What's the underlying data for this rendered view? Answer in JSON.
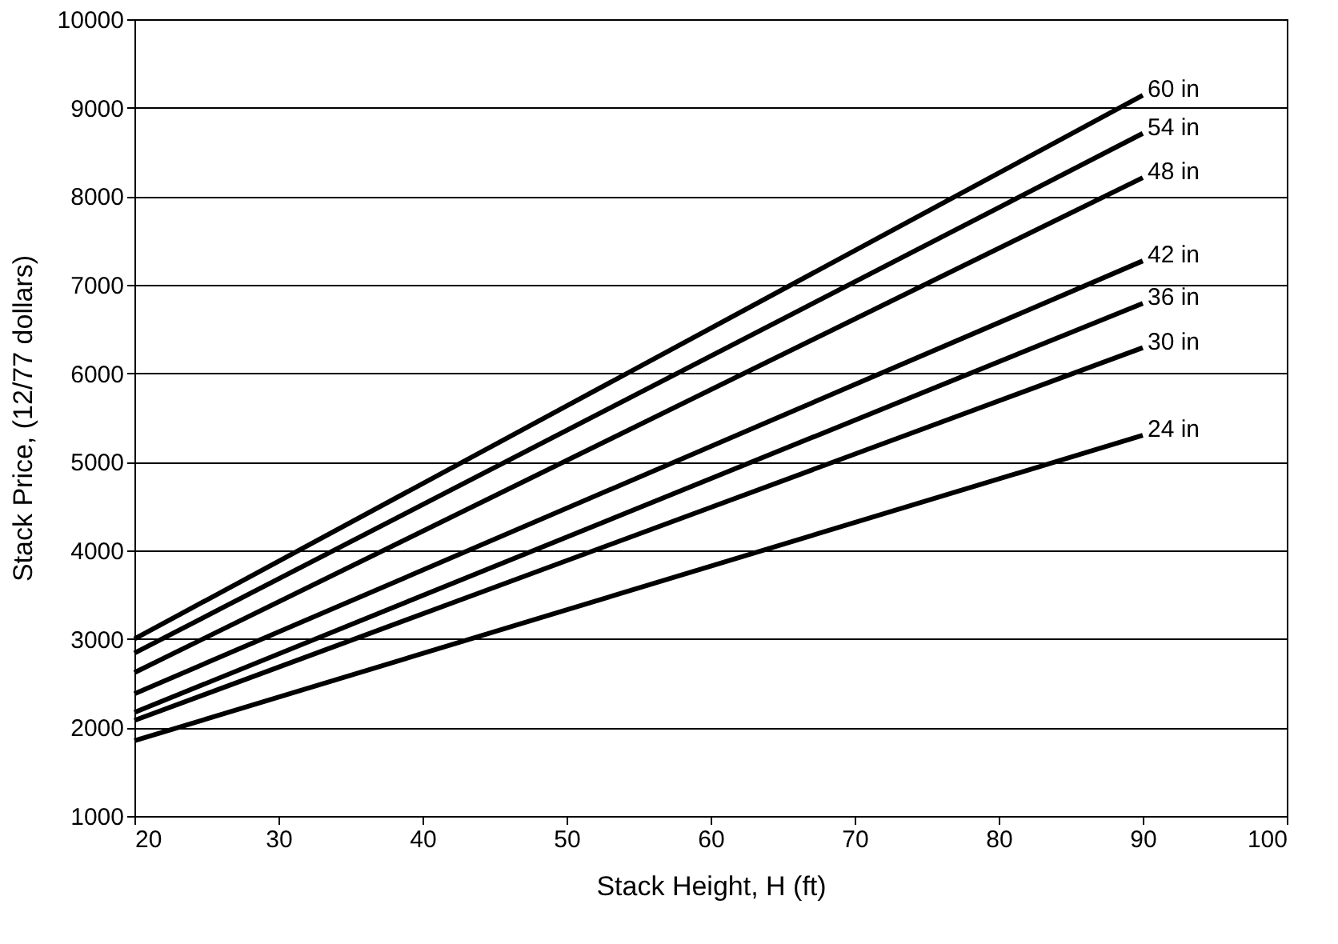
{
  "chart_data": {
    "type": "line",
    "xlabel": "Stack Height, H (ft)",
    "ylabel": "Stack Price, (12/77 dollars)",
    "x": [
      20,
      90
    ],
    "series": [
      {
        "name": "60 in",
        "color": "#000000",
        "values": [
          3000,
          9140
        ]
      },
      {
        "name": "54 in",
        "color": "#000000",
        "values": [
          2840,
          8710
        ]
      },
      {
        "name": "48 in",
        "color": "#000000",
        "values": [
          2620,
          8210
        ]
      },
      {
        "name": "42 in",
        "color": "#000000",
        "values": [
          2380,
          7270
        ]
      },
      {
        "name": "36 in",
        "color": "#000000",
        "values": [
          2170,
          6790
        ]
      },
      {
        "name": "30 in",
        "color": "#000000",
        "values": [
          2080,
          6290
        ]
      },
      {
        "name": "24 in",
        "color": "#000000",
        "values": [
          1850,
          5300
        ]
      }
    ],
    "xlim": [
      20,
      100
    ],
    "xticks": [
      20,
      30,
      40,
      50,
      60,
      70,
      80,
      90,
      100
    ],
    "ylim": [
      1000,
      10000
    ],
    "yticks": [
      1000,
      2000,
      3000,
      4000,
      5000,
      6000,
      7000,
      8000,
      9000,
      10000
    ],
    "grid": "y",
    "legend": false,
    "marker": "none",
    "line_style": "solid"
  }
}
